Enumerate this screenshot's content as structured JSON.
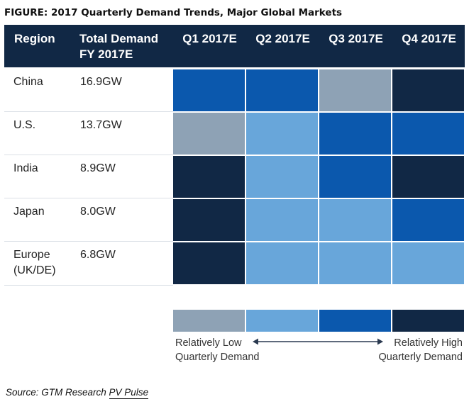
{
  "title": "FIGURE: 2017 Quarterly Demand Trends, Major Global Markets",
  "header": {
    "region": "Region",
    "total_line1": "Total Demand",
    "total_line2": "FY 2017E",
    "q1": "Q1 2017E",
    "q2": "Q2 2017E",
    "q3": "Q3 2017E",
    "q4": "Q4 2017E"
  },
  "colors": {
    "header_bg": "#112845",
    "level_1": "#8ea2b5",
    "level_2": "#68a6da",
    "level_3": "#0b58ad",
    "level_4": "#112845"
  },
  "chart_data": {
    "type": "heatmap",
    "title": "2017 Quarterly Demand Trends, Major Global Markets",
    "columns": [
      "Q1 2017E",
      "Q2 2017E",
      "Q3 2017E",
      "Q4 2017E"
    ],
    "rows": [
      {
        "region_line1": "China",
        "region_line2": "",
        "total": "16.9GW",
        "levels": [
          3,
          3,
          1,
          4
        ]
      },
      {
        "region_line1": "U.S.",
        "region_line2": "",
        "total": "13.7GW",
        "levels": [
          1,
          2,
          3,
          3
        ]
      },
      {
        "region_line1": "India",
        "region_line2": "",
        "total": "8.9GW",
        "levels": [
          4,
          2,
          3,
          4
        ]
      },
      {
        "region_line1": "Japan",
        "region_line2": "",
        "total": "8.0GW",
        "levels": [
          4,
          2,
          2,
          3
        ]
      },
      {
        "region_line1": "Europe",
        "region_line2": "(UK/DE)",
        "total": "6.8GW",
        "levels": [
          4,
          2,
          2,
          2
        ]
      }
    ],
    "scale": {
      "levels": [
        1,
        2,
        3,
        4
      ],
      "low_line1": "Relatively Low",
      "low_line2": "Quarterly Demand",
      "high_line1": "Relatively High",
      "high_line2": "Quarterly Demand"
    }
  },
  "source": {
    "prefix": "Source: GTM Research ",
    "link": "PV Pulse"
  }
}
